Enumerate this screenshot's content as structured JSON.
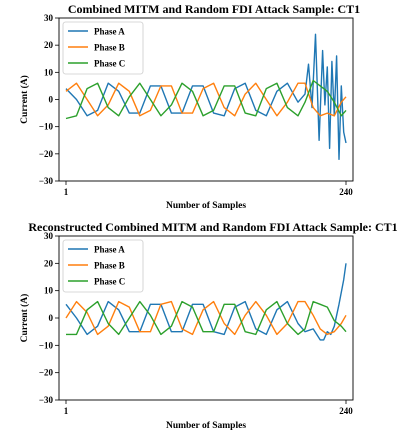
{
  "colors": {
    "phase_a": "#1f77b4",
    "phase_b": "#ff7f0e",
    "phase_c": "#2ca02c"
  },
  "chart_data": [
    {
      "type": "line",
      "title": "Combined MITM and Random FDI Attack Sample: CT1",
      "xlabel": "Number of Samples",
      "ylabel": "Current (A)",
      "xlim": [
        1,
        240
      ],
      "ylim": [
        -30,
        30
      ],
      "xticks": [
        1,
        240
      ],
      "yticks": [
        -30,
        -20,
        -10,
        0,
        10,
        20,
        30
      ],
      "grid": false,
      "legend": "top-left",
      "series": [
        {
          "name": "Phase A",
          "color": "#1f77b4",
          "x": [
            1,
            10,
            19,
            28,
            37,
            46,
            55,
            64,
            73,
            82,
            91,
            100,
            109,
            118,
            127,
            136,
            145,
            154,
            163,
            172,
            181,
            190,
            199,
            205,
            208,
            211,
            214,
            217,
            220,
            222,
            224,
            226,
            228,
            230,
            232,
            234,
            236,
            238,
            240
          ],
          "y": [
            4,
            0,
            -6,
            -4,
            6,
            3,
            -5,
            -5,
            5,
            5,
            -5,
            -5,
            5,
            5,
            -5,
            -6,
            4,
            6,
            -4,
            -6,
            3,
            6,
            -1,
            2,
            13,
            -3,
            24,
            -15,
            18,
            -2,
            12,
            -18,
            14,
            -6,
            16,
            -22,
            5,
            -12,
            -16
          ]
        },
        {
          "name": "Phase B",
          "color": "#ff7f0e",
          "x": [
            1,
            10,
            19,
            28,
            37,
            46,
            55,
            64,
            73,
            82,
            91,
            100,
            109,
            118,
            127,
            136,
            145,
            154,
            163,
            172,
            181,
            190,
            199,
            205,
            212,
            218,
            224,
            230,
            236,
            240
          ],
          "y": [
            3,
            6,
            0,
            -6,
            -2,
            6,
            3,
            -6,
            -4,
            5,
            5,
            -5,
            -5,
            4,
            6,
            -3,
            -6,
            2,
            6,
            0,
            -6,
            -1,
            6,
            6,
            -3,
            -6,
            -5,
            -6,
            -1,
            1
          ]
        },
        {
          "name": "Phase C",
          "color": "#2ca02c",
          "x": [
            1,
            10,
            19,
            28,
            37,
            46,
            55,
            64,
            73,
            82,
            91,
            100,
            109,
            118,
            127,
            136,
            145,
            154,
            163,
            172,
            181,
            190,
            199,
            205,
            212,
            218,
            224,
            230,
            236,
            240
          ],
          "y": [
            -7,
            -6,
            4,
            6,
            -3,
            -6,
            1,
            6,
            0,
            -6,
            -2,
            6,
            3,
            -6,
            -4,
            5,
            5,
            -5,
            -6,
            4,
            6,
            -3,
            -6,
            -1,
            7,
            5,
            3,
            -1,
            -6,
            -4
          ]
        }
      ]
    },
    {
      "type": "line",
      "title": "Reconstructed Combined MITM and Random FDI Attack Sample: CT1",
      "xlabel": "Number of Samples",
      "ylabel": "Current (A)",
      "xlim": [
        1,
        240
      ],
      "ylim": [
        -30,
        30
      ],
      "xticks": [
        1,
        240
      ],
      "yticks": [
        -30,
        -20,
        -10,
        0,
        10,
        20,
        30
      ],
      "grid": false,
      "legend": "top-left",
      "series": [
        {
          "name": "Phase A",
          "color": "#1f77b4",
          "x": [
            1,
            10,
            19,
            28,
            37,
            46,
            55,
            64,
            73,
            82,
            91,
            100,
            109,
            118,
            127,
            136,
            145,
            154,
            163,
            172,
            181,
            190,
            199,
            205,
            212,
            218,
            221,
            224,
            227,
            230,
            234,
            238,
            240
          ],
          "y": [
            5,
            0,
            -6,
            -3,
            6,
            3,
            -5,
            -5,
            5,
            5,
            -5,
            -5,
            5,
            5,
            -5,
            -6,
            4,
            6,
            -4,
            -6,
            3,
            6,
            -2,
            -5,
            -4,
            -8,
            -8,
            -5,
            -6,
            -3,
            5,
            14,
            20
          ]
        },
        {
          "name": "Phase B",
          "color": "#ff7f0e",
          "x": [
            1,
            10,
            19,
            28,
            37,
            46,
            55,
            64,
            73,
            82,
            91,
            100,
            109,
            118,
            127,
            136,
            145,
            154,
            163,
            172,
            181,
            190,
            199,
            205,
            212,
            218,
            224,
            230,
            236,
            240
          ],
          "y": [
            0,
            6,
            2,
            -6,
            -3,
            6,
            4,
            -5,
            -5,
            5,
            6,
            -4,
            -6,
            3,
            6,
            -2,
            -6,
            1,
            6,
            1,
            -6,
            -2,
            6,
            6,
            1,
            -4,
            -6,
            -5,
            -2,
            1
          ]
        },
        {
          "name": "Phase C",
          "color": "#2ca02c",
          "x": [
            1,
            10,
            19,
            28,
            37,
            46,
            55,
            64,
            73,
            82,
            91,
            100,
            109,
            118,
            127,
            136,
            145,
            154,
            163,
            172,
            181,
            190,
            199,
            205,
            212,
            218,
            224,
            230,
            236,
            240
          ],
          "y": [
            -6,
            -6,
            3,
            6,
            -2,
            -6,
            0,
            6,
            1,
            -6,
            -3,
            6,
            4,
            -5,
            -5,
            5,
            5,
            -5,
            -6,
            3,
            6,
            -2,
            -6,
            -4,
            6,
            5,
            4,
            -1,
            -3,
            -5
          ]
        }
      ]
    }
  ]
}
